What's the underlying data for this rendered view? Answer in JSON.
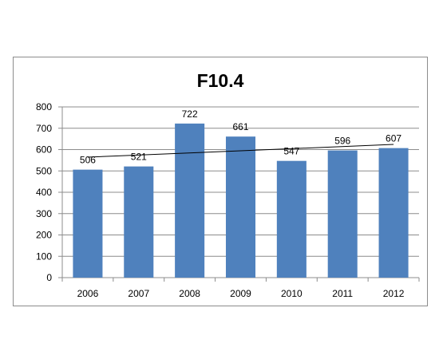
{
  "chart_data": {
    "type": "bar",
    "title": "F10.4",
    "categories": [
      "2006",
      "2007",
      "2008",
      "2009",
      "2010",
      "2011",
      "2012"
    ],
    "values": [
      506,
      521,
      722,
      661,
      547,
      596,
      607
    ],
    "data_labels": [
      "506",
      "521",
      "722",
      "661",
      "547",
      "596",
      "607"
    ],
    "xlabel": "",
    "ylabel": "",
    "ylim": [
      0,
      800
    ],
    "yticks": [
      0,
      100,
      200,
      300,
      400,
      500,
      600,
      700,
      800
    ],
    "grid": true,
    "legend": "none",
    "trendline": "linear",
    "colors": {
      "bar": "#4f81bd",
      "grid": "#8c8c8c",
      "trendline": "#000000"
    }
  }
}
